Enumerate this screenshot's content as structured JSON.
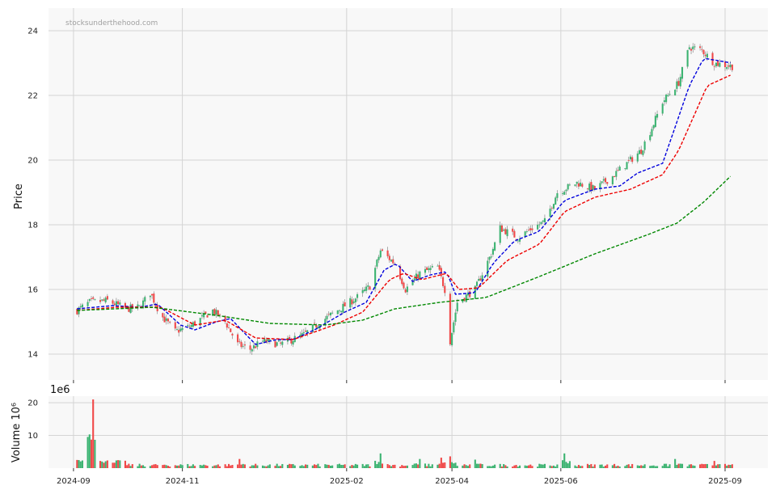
{
  "chart_data": [
    {
      "type": "candlestick",
      "watermark": "stocksunderthehood.com",
      "ylabel": "Price",
      "ylim": [
        13.2,
        24.7
      ],
      "yticks": [
        "14",
        "16",
        "18",
        "20",
        "22",
        "24"
      ],
      "x_range": [
        "2024-08-18",
        "2025-09-25"
      ],
      "grid": true,
      "colors": {
        "up": "#3cb371",
        "down": "#f04848",
        "ma_short": "#0000dd",
        "ma_mid": "#ee0000",
        "ma_long": "#008800",
        "background": "#f8f8f8",
        "grid": "#d4d4d4"
      },
      "start_date": "2024-09-03",
      "end_date": "2025-09-05",
      "close_anchors": [
        [
          "2024-09-03",
          15.35
        ],
        [
          "2024-09-10",
          15.6
        ],
        [
          "2024-09-20",
          15.65
        ],
        [
          "2024-10-01",
          15.4
        ],
        [
          "2024-10-08",
          15.45
        ],
        [
          "2024-10-14",
          15.9
        ],
        [
          "2024-10-20",
          15.2
        ],
        [
          "2024-10-28",
          14.7
        ],
        [
          "2024-11-05",
          14.85
        ],
        [
          "2024-11-18",
          15.35
        ],
        [
          "2024-11-25",
          15.0
        ],
        [
          "2024-12-02",
          14.3
        ],
        [
          "2024-12-09",
          14.15
        ],
        [
          "2024-12-16",
          14.4
        ],
        [
          "2024-12-26",
          14.3
        ],
        [
          "2025-01-08",
          14.6
        ],
        [
          "2025-01-20",
          15.1
        ],
        [
          "2025-01-31",
          15.5
        ],
        [
          "2025-02-08",
          15.8
        ],
        [
          "2025-02-14",
          16.1
        ],
        [
          "2025-02-20",
          17.2
        ],
        [
          "2025-02-28",
          16.8
        ],
        [
          "2025-03-06",
          16.0
        ],
        [
          "2025-03-14",
          16.5
        ],
        [
          "2025-03-24",
          16.7
        ],
        [
          "2025-03-28",
          16.0
        ],
        [
          "2025-03-31",
          14.4
        ],
        [
          "2025-04-04",
          15.6
        ],
        [
          "2025-04-14",
          16.0
        ],
        [
          "2025-04-23",
          17.1
        ],
        [
          "2025-04-28",
          17.9
        ],
        [
          "2025-05-08",
          17.6
        ],
        [
          "2025-05-16",
          17.9
        ],
        [
          "2025-05-23",
          18.1
        ],
        [
          "2025-05-30",
          19.0
        ],
        [
          "2025-06-10",
          19.3
        ],
        [
          "2025-06-20",
          19.1
        ],
        [
          "2025-06-30",
          19.5
        ],
        [
          "2025-07-08",
          19.9
        ],
        [
          "2025-07-16",
          20.3
        ],
        [
          "2025-07-22",
          21.0
        ],
        [
          "2025-07-28",
          21.8
        ],
        [
          "2025-08-06",
          22.4
        ],
        [
          "2025-08-12",
          23.5
        ],
        [
          "2025-08-19",
          23.4
        ],
        [
          "2025-08-26",
          23.0
        ],
        [
          "2025-09-05",
          22.9
        ]
      ],
      "ma_short": [
        [
          "2024-09-03",
          15.4
        ],
        [
          "2024-09-23",
          15.5
        ],
        [
          "2024-10-08",
          15.45
        ],
        [
          "2024-10-18",
          15.55
        ],
        [
          "2024-10-31",
          14.9
        ],
        [
          "2024-11-08",
          14.75
        ],
        [
          "2024-11-20",
          15.0
        ],
        [
          "2024-11-28",
          15.1
        ],
        [
          "2024-12-12",
          14.3
        ],
        [
          "2024-12-24",
          14.45
        ],
        [
          "2025-01-02",
          14.45
        ],
        [
          "2025-01-14",
          14.75
        ],
        [
          "2025-01-31",
          15.3
        ],
        [
          "2025-02-12",
          15.6
        ],
        [
          "2025-02-22",
          16.6
        ],
        [
          "2025-03-01",
          16.8
        ],
        [
          "2025-03-10",
          16.25
        ],
        [
          "2025-03-20",
          16.45
        ],
        [
          "2025-03-29",
          16.55
        ],
        [
          "2025-04-03",
          15.85
        ],
        [
          "2025-04-14",
          15.9
        ],
        [
          "2025-04-24",
          16.8
        ],
        [
          "2025-05-06",
          17.5
        ],
        [
          "2025-05-20",
          17.8
        ],
        [
          "2025-06-03",
          18.75
        ],
        [
          "2025-06-20",
          19.1
        ],
        [
          "2025-07-04",
          19.2
        ],
        [
          "2025-07-14",
          19.6
        ],
        [
          "2025-07-28",
          19.9
        ],
        [
          "2025-08-12",
          22.3
        ],
        [
          "2025-08-20",
          23.15
        ],
        [
          "2025-09-05",
          23.0
        ]
      ],
      "ma_mid": [
        [
          "2024-09-03",
          15.35
        ],
        [
          "2024-09-25",
          15.45
        ],
        [
          "2024-10-20",
          15.45
        ],
        [
          "2024-11-08",
          14.9
        ],
        [
          "2024-11-25",
          15.05
        ],
        [
          "2024-12-12",
          14.5
        ],
        [
          "2025-01-02",
          14.45
        ],
        [
          "2025-01-25",
          14.9
        ],
        [
          "2025-02-10",
          15.3
        ],
        [
          "2025-02-25",
          16.3
        ],
        [
          "2025-03-05",
          16.5
        ],
        [
          "2025-03-15",
          16.3
        ],
        [
          "2025-03-29",
          16.5
        ],
        [
          "2025-04-05",
          16.0
        ],
        [
          "2025-04-16",
          16.05
        ],
        [
          "2025-05-02",
          16.9
        ],
        [
          "2025-05-20",
          17.4
        ],
        [
          "2025-06-03",
          18.4
        ],
        [
          "2025-06-20",
          18.85
        ],
        [
          "2025-07-10",
          19.1
        ],
        [
          "2025-07-28",
          19.55
        ],
        [
          "2025-08-06",
          20.3
        ],
        [
          "2025-08-22",
          22.3
        ],
        [
          "2025-09-05",
          22.65
        ]
      ],
      "ma_long": [
        [
          "2024-09-03",
          15.35
        ],
        [
          "2024-10-15",
          15.45
        ],
        [
          "2024-11-20",
          15.2
        ],
        [
          "2024-12-20",
          14.95
        ],
        [
          "2025-01-20",
          14.9
        ],
        [
          "2025-02-10",
          15.05
        ],
        [
          "2025-02-28",
          15.4
        ],
        [
          "2025-03-25",
          15.6
        ],
        [
          "2025-04-20",
          15.75
        ],
        [
          "2025-05-20",
          16.4
        ],
        [
          "2025-06-20",
          17.1
        ],
        [
          "2025-07-20",
          17.7
        ],
        [
          "2025-08-05",
          18.05
        ],
        [
          "2025-08-20",
          18.7
        ],
        [
          "2025-09-05",
          19.55
        ]
      ]
    },
    {
      "type": "bar",
      "ylabel": "Volume  10⁶",
      "exponent_label": "1e6",
      "ylim": [
        0,
        22
      ],
      "yticks": [
        "10",
        "20"
      ],
      "xticks": [
        "2024-09",
        "2024-11",
        "2025-02",
        "2025-04",
        "2025-06",
        "2025-09"
      ],
      "base_volume_millions": 0.9,
      "spikes": [
        [
          "2024-09-03",
          2.5
        ],
        [
          "2024-09-09",
          2.8
        ],
        [
          "2024-09-12",
          21.0
        ],
        [
          "2024-10-20",
          1.8
        ],
        [
          "2024-12-03",
          2.8
        ],
        [
          "2025-02-20",
          4.5
        ],
        [
          "2025-03-14",
          2.8
        ],
        [
          "2025-03-26",
          3.2
        ],
        [
          "2025-03-31",
          3.6
        ],
        [
          "2025-04-14",
          2.6
        ],
        [
          "2025-06-03",
          4.5
        ],
        [
          "2025-08-04",
          2.8
        ],
        [
          "2025-08-26",
          2.2
        ]
      ]
    }
  ]
}
